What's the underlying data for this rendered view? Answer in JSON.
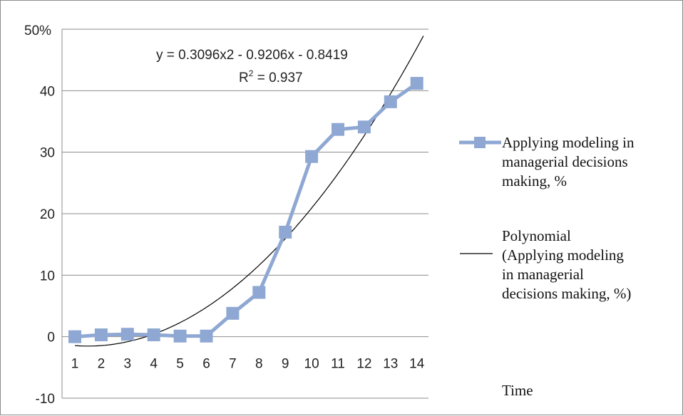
{
  "chart_data": {
    "type": "line",
    "x": [
      1,
      2,
      3,
      4,
      5,
      6,
      7,
      8,
      9,
      10,
      11,
      12,
      13,
      14
    ],
    "series": [
      {
        "name": "Applying modeling in managerial decisions making, %",
        "values": [
          0,
          0.3,
          0.4,
          0.3,
          0.1,
          0.1,
          3.8,
          7.2,
          17,
          29.3,
          33.7,
          34.1,
          38.2,
          41.2
        ],
        "marker": "square",
        "color": "#8fa8d3"
      },
      {
        "name": "Polynomial (Applying modeling in managerial decisions making, %)",
        "trendline": "polynomial",
        "coefficients": [
          0.3096,
          -0.9206,
          -0.8419
        ],
        "color": "#000000"
      }
    ],
    "ylabel": "50%",
    "xlabel": "Time",
    "ylim": [
      -10,
      50
    ],
    "yticks": [
      "-10",
      "0",
      "10",
      "20",
      "30",
      "40"
    ],
    "xticks": [
      "1",
      "2",
      "3",
      "4",
      "5",
      "6",
      "7",
      "8",
      "9",
      "10",
      "11",
      "12",
      "13",
      "14"
    ],
    "grid": "horizontal",
    "legend_position": "right",
    "annotations": {
      "equation": "y = 0.3096x2 - 0.9206x - 0.8419",
      "r_squared_prefix": "R",
      "r_squared_sup": "2",
      "r_squared_suffix": " = 0.937"
    }
  },
  "legend": {
    "series_label_lines": [
      "Applying modeling in",
      "managerial decisions",
      "making, %"
    ],
    "trend_label_lines": [
      "Polynomial",
      "(Applying modeling",
      "in managerial",
      "decisions making, %)"
    ]
  }
}
